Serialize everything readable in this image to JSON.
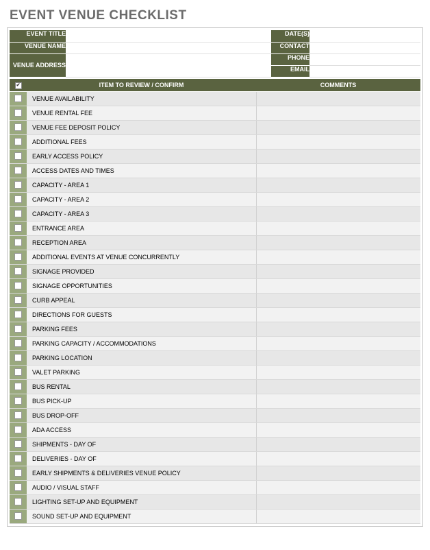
{
  "title": "EVENT VENUE CHECKLIST",
  "colors": {
    "header_dark": "#5a6340",
    "check_bg": "#9aa97e",
    "row_odd": "#e7e7e7",
    "row_even": "#f2f2f2",
    "title_color": "#6b6b6b",
    "border": "#c0c0c0"
  },
  "info": {
    "left": [
      {
        "label": "EVENT TITLE",
        "value": ""
      },
      {
        "label": "VENUE NAME",
        "value": ""
      },
      {
        "label": "VENUE ADDRESS",
        "value": ""
      }
    ],
    "right": [
      {
        "label": "DATE(S)",
        "value": ""
      },
      {
        "label": "CONTACT",
        "value": ""
      },
      {
        "label": "PHONE",
        "value": ""
      },
      {
        "label": "EMAIL",
        "value": ""
      }
    ]
  },
  "columns": {
    "check_mark": "✔",
    "item": "ITEM TO REVIEW / CONFIRM",
    "comments": "COMMENTS"
  },
  "items": [
    {
      "label": "VENUE AVAILABILITY",
      "comment": ""
    },
    {
      "label": "VENUE RENTAL FEE",
      "comment": ""
    },
    {
      "label": "VENUE FEE DEPOSIT POLICY",
      "comment": ""
    },
    {
      "label": "ADDITIONAL FEES",
      "comment": ""
    },
    {
      "label": "EARLY ACCESS POLICY",
      "comment": ""
    },
    {
      "label": "ACCESS DATES AND TIMES",
      "comment": ""
    },
    {
      "label": "CAPACITY - AREA 1",
      "comment": ""
    },
    {
      "label": "CAPACITY - AREA 2",
      "comment": ""
    },
    {
      "label": "CAPACITY - AREA 3",
      "comment": ""
    },
    {
      "label": "ENTRANCE AREA",
      "comment": ""
    },
    {
      "label": "RECEPTION AREA",
      "comment": ""
    },
    {
      "label": "ADDITIONAL EVENTS AT VENUE CONCURRENTLY",
      "comment": ""
    },
    {
      "label": "SIGNAGE PROVIDED",
      "comment": ""
    },
    {
      "label": "SIGNAGE OPPORTUNITIES",
      "comment": ""
    },
    {
      "label": "CURB APPEAL",
      "comment": ""
    },
    {
      "label": "DIRECTIONS FOR GUESTS",
      "comment": ""
    },
    {
      "label": "PARKING FEES",
      "comment": ""
    },
    {
      "label": "PARKING CAPACITY / ACCOMMODATIONS",
      "comment": ""
    },
    {
      "label": "PARKING LOCATION",
      "comment": ""
    },
    {
      "label": "VALET PARKING",
      "comment": ""
    },
    {
      "label": "BUS RENTAL",
      "comment": ""
    },
    {
      "label": "BUS PICK-UP",
      "comment": ""
    },
    {
      "label": "BUS DROP-OFF",
      "comment": ""
    },
    {
      "label": "ADA ACCESS",
      "comment": ""
    },
    {
      "label": "SHIPMENTS - DAY OF",
      "comment": ""
    },
    {
      "label": "DELIVERIES - DAY OF",
      "comment": ""
    },
    {
      "label": "EARLY SHIPMENTS & DELIVERIES VENUE POLICY",
      "comment": ""
    },
    {
      "label": "AUDIO / VISUAL STAFF",
      "comment": ""
    },
    {
      "label": "LIGHTING SET-UP  AND EQUIPMENT",
      "comment": ""
    },
    {
      "label": "SOUND SET-UP AND EQUIPMENT",
      "comment": ""
    }
  ]
}
